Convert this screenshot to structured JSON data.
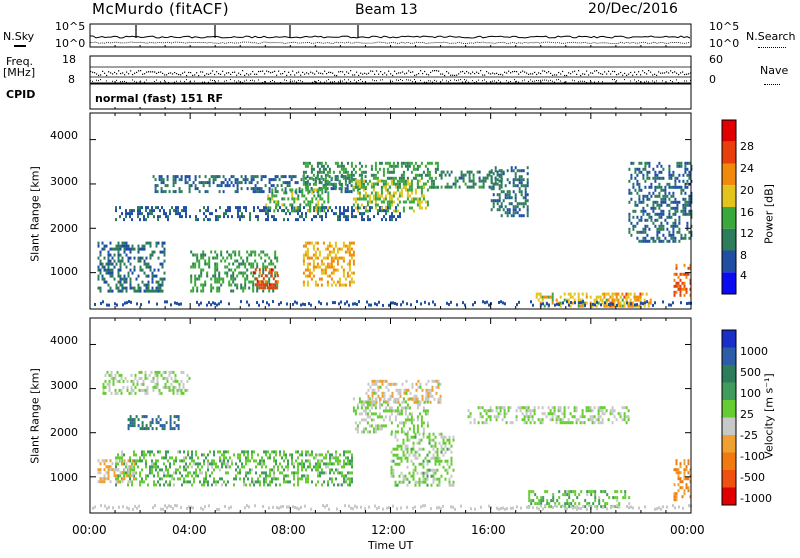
{
  "header": {
    "station": "McMurdo (fitACF)",
    "beam": "Beam 13",
    "date": "20/Dec/2016"
  },
  "noise_panel": {
    "left_label": "N.Sky",
    "right_label": "N.Search",
    "left_ticks": [
      "10^5",
      "10^0"
    ],
    "right_ticks": [
      "10^5",
      "10^0"
    ]
  },
  "freq_panel": {
    "left_label": "Freq.",
    "left_unit": "[MHz]",
    "left_ticks": [
      "18",
      "8"
    ],
    "right_label": "Nave",
    "right_ticks": [
      "60",
      "0"
    ]
  },
  "cpid_panel": {
    "label": "CPID",
    "mode": "normal (fast) 151 RF"
  },
  "time_axis": {
    "label": "Time UT",
    "ticks": [
      "00:00",
      "04:00",
      "08:00",
      "12:00",
      "16:00",
      "20:00",
      "00:00"
    ]
  },
  "power_panel": {
    "ylabel": "Slant Range [km]",
    "yticks": [
      "1000",
      "2000",
      "3000",
      "4000"
    ],
    "colorbar_label": "Power [dB]",
    "colorbar_ticks": [
      "4",
      "8",
      "12",
      "16",
      "20",
      "24",
      "28"
    ],
    "colors": [
      "#0b0bf2",
      "#1f4ea3",
      "#2e7d5a",
      "#3aa83a",
      "#e3c31d",
      "#f08a0c",
      "#e8400c",
      "#e00000"
    ]
  },
  "velocity_panel": {
    "ylabel": "Slant Range [km]",
    "yticks": [
      "1000",
      "2000",
      "3000",
      "4000"
    ],
    "colorbar_label": "Velocity [m s⁻¹]",
    "colorbar_ticks": [
      "1000",
      "500",
      "100",
      "25",
      "-25",
      "-100",
      "-500",
      "-1000"
    ],
    "colors": [
      "#1a2fc7",
      "#2e5da8",
      "#2e7d5a",
      "#3f9c5c",
      "#66cc33",
      "#c8c8c8",
      "#f0a030",
      "#f07a10",
      "#f05010",
      "#e00000"
    ]
  },
  "chart_data": [
    {
      "type": "heatmap",
      "title": "Power [dB]",
      "xlabel": "Time UT",
      "ylabel": "Slant Range [km]",
      "xlim": [
        0,
        24
      ],
      "ylim": [
        180,
        4600
      ],
      "clim": [
        0,
        32
      ],
      "regions": [
        {
          "t": [
            1.0,
            12.5
          ],
          "r": [
            2200,
            2500
          ],
          "value": 7
        },
        {
          "t": [
            2.5,
            11.0
          ],
          "r": [
            2800,
            3200
          ],
          "value": 8
        },
        {
          "t": [
            8.5,
            14.0
          ],
          "r": [
            2900,
            3500
          ],
          "value": 12
        },
        {
          "t": [
            10.5,
            13.5
          ],
          "r": [
            2400,
            3100
          ],
          "value": 16
        },
        {
          "t": [
            7.0,
            9.5
          ],
          "r": [
            2400,
            2900
          ],
          "value": 14
        },
        {
          "t": [
            0.3,
            3.0
          ],
          "r": [
            600,
            1700
          ],
          "value": 8
        },
        {
          "t": [
            4.0,
            7.5
          ],
          "r": [
            600,
            1500
          ],
          "value": 13
        },
        {
          "t": [
            6.5,
            7.5
          ],
          "r": [
            650,
            1100
          ],
          "value": 26
        },
        {
          "t": [
            8.5,
            10.5
          ],
          "r": [
            700,
            1700
          ],
          "value": 20
        },
        {
          "t": [
            14.0,
            16.5
          ],
          "r": [
            2900,
            3300
          ],
          "value": 10
        },
        {
          "t": [
            16.0,
            17.5
          ],
          "r": [
            2300,
            3400
          ],
          "value": 9
        },
        {
          "t": [
            17.8,
            22.5
          ],
          "r": [
            250,
            550
          ],
          "value": 18
        },
        {
          "t": [
            20.5,
            22.0
          ],
          "r": [
            250,
            550
          ],
          "value": 22
        },
        {
          "t": [
            21.5,
            24.0
          ],
          "r": [
            1700,
            3500
          ],
          "value": 8
        },
        {
          "t": [
            23.3,
            24.0
          ],
          "r": [
            500,
            1200
          ],
          "value": 24
        }
      ]
    },
    {
      "type": "heatmap",
      "title": "Velocity [m s⁻¹]",
      "xlabel": "Time UT",
      "ylabel": "Slant Range [km]",
      "xlim": [
        0,
        24
      ],
      "ylim": [
        180,
        4600
      ],
      "clim": [
        -1000,
        1000
      ],
      "regions": [
        {
          "t": [
            1.0,
            10.5
          ],
          "r": [
            800,
            1600
          ],
          "value": 150
        },
        {
          "t": [
            10.5,
            13.5
          ],
          "r": [
            2000,
            2800
          ],
          "value": 0
        },
        {
          "t": [
            15.0,
            21.5
          ],
          "r": [
            2200,
            2600
          ],
          "value": 0
        },
        {
          "t": [
            0.5,
            4.0
          ],
          "r": [
            2900,
            3400
          ],
          "value": 0
        },
        {
          "t": [
            1.5,
            3.5
          ],
          "r": [
            2100,
            2400
          ],
          "value": 600
        },
        {
          "t": [
            11.0,
            14.0
          ],
          "r": [
            2700,
            3200
          ],
          "value": -150
        },
        {
          "t": [
            0.3,
            1.8
          ],
          "r": [
            900,
            1400
          ],
          "value": -200
        },
        {
          "t": [
            17.5,
            21.5
          ],
          "r": [
            300,
            700
          ],
          "value": 150
        },
        {
          "t": [
            23.3,
            24.0
          ],
          "r": [
            500,
            1400
          ],
          "value": -400
        },
        {
          "t": [
            12.0,
            14.5
          ],
          "r": [
            800,
            2000
          ],
          "value": 50
        }
      ]
    }
  ]
}
